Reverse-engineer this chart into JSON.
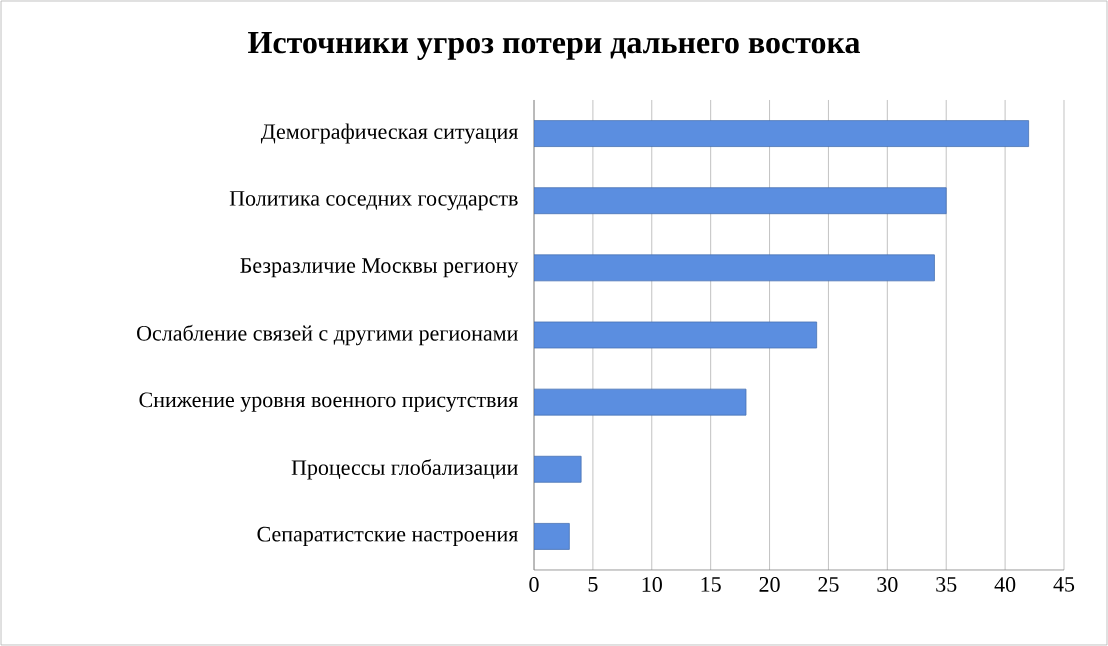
{
  "chart_data": {
    "type": "bar",
    "orientation": "horizontal",
    "title": "Источники угроз потери дальнего востока",
    "categories": [
      "Демографическая ситуация",
      "Политика соседних государств",
      "Безразличие Москвы региону",
      "Ослабление связей с другими регионами",
      "Снижение уровня военного присутствия",
      "Процессы глобализации",
      "Сепаратистские настроения"
    ],
    "values": [
      42,
      35,
      34,
      24,
      18,
      4,
      3
    ],
    "color": "#5b8ee0",
    "xlim": [
      0,
      45
    ],
    "xticks": [
      0,
      5,
      10,
      15,
      20,
      25,
      30,
      35,
      40,
      45
    ],
    "grid": "x"
  }
}
